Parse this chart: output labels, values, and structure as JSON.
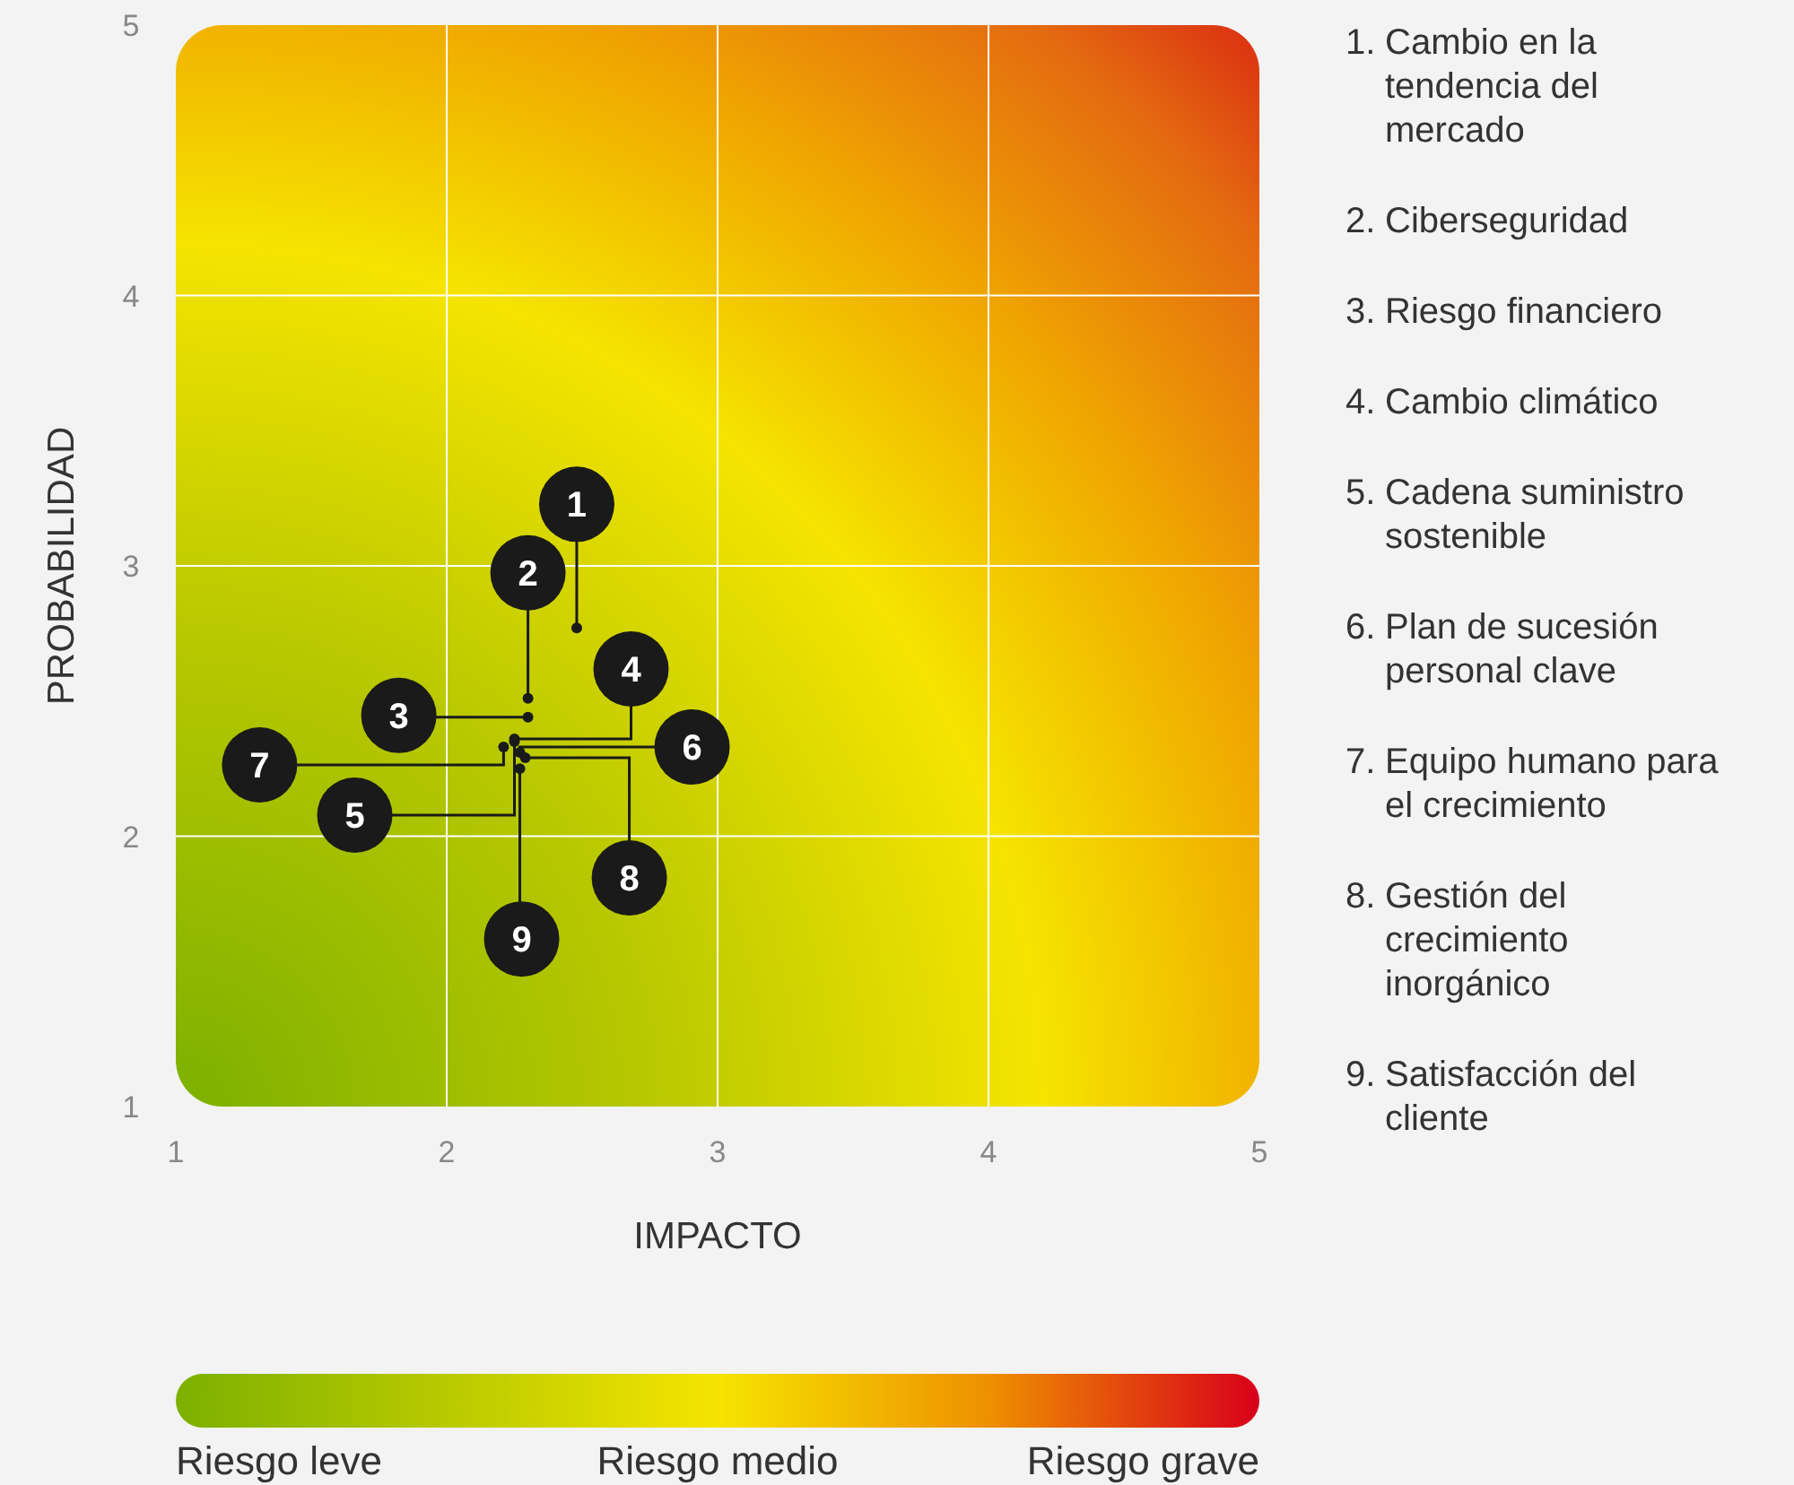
{
  "chart_data": {
    "type": "scatter",
    "xlabel": "IMPACTO",
    "ylabel": "PROBABILIDAD",
    "xlim": [
      1,
      5
    ],
    "ylim": [
      1,
      5
    ],
    "xticks": [
      1,
      2,
      3,
      4,
      5
    ],
    "yticks": [
      1,
      2,
      3,
      4,
      5
    ],
    "grid": true,
    "marker": "circle",
    "series": [
      {
        "color": "#1a1a1a",
        "x": [
          2.48,
          2.3,
          2.3,
          2.25,
          2.25,
          2.27,
          2.21,
          2.29,
          2.27
        ],
        "values": [
          2.77,
          2.51,
          2.44,
          2.36,
          2.35,
          2.31,
          2.33,
          2.29,
          2.25
        ]
      }
    ],
    "annotations": [
      {
        "text": "1",
        "x": 2.48,
        "y": 2.77
      },
      {
        "text": "2",
        "x": 2.3,
        "y": 2.51
      },
      {
        "text": "3",
        "x": 2.3,
        "y": 2.44
      },
      {
        "text": "4",
        "x": 2.25,
        "y": 2.36
      },
      {
        "text": "5",
        "x": 2.25,
        "y": 2.35
      },
      {
        "text": "6",
        "x": 2.27,
        "y": 2.31
      },
      {
        "text": "7",
        "x": 2.21,
        "y": 2.33
      },
      {
        "text": "8",
        "x": 2.29,
        "y": 2.29
      },
      {
        "text": "9",
        "x": 2.27,
        "y": 2.25
      },
      "1. Cambio en la tendencia del mercado",
      "2. Ciberseguridad",
      "3. Riesgo financiero",
      "4. Cambio climático",
      "5. Cadena suministro sostenible",
      "6. Plan de sucesión personal clave",
      "7. Equipo humano para el crecimiento",
      "8. Gestión del crecimiento inorgánico",
      "9. Satisfacción del cliente",
      "Riesgo leve",
      "Riesgo medio",
      "Riesgo grave"
    ]
  }
}
